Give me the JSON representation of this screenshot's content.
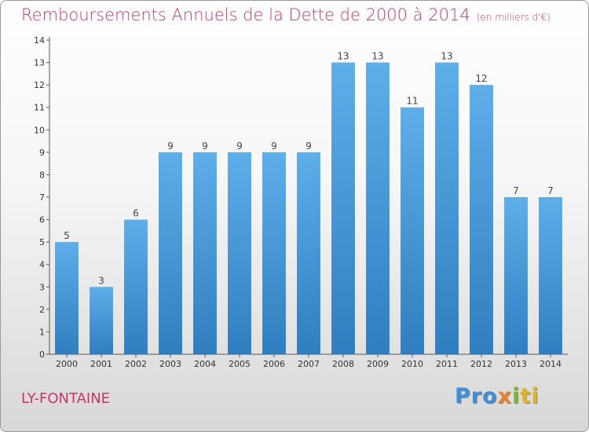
{
  "chart_data": {
    "type": "bar",
    "title": "Remboursements Annuels de la Dette de 2000 à 2014",
    "title_unit": "(en milliers d'€)",
    "categories": [
      "2000",
      "2001",
      "2002",
      "2003",
      "2004",
      "2005",
      "2006",
      "2007",
      "2008",
      "2009",
      "2010",
      "2011",
      "2012",
      "2013",
      "2014"
    ],
    "values": [
      5,
      3,
      6,
      9,
      9,
      9,
      9,
      9,
      13,
      13,
      11,
      13,
      12,
      7,
      7
    ],
    "data_labels": [
      "5",
      "3",
      "6",
      "9",
      "9",
      "9",
      "9",
      "9",
      "13",
      "13",
      "11",
      "13",
      "12",
      "7",
      "7"
    ],
    "ylim": [
      0,
      14
    ],
    "yticks": [
      0,
      1,
      2,
      3,
      4,
      5,
      6,
      7,
      8,
      9,
      10,
      11,
      12,
      13,
      14
    ],
    "ytick_labels": [
      "0",
      "1",
      "2",
      "3",
      "4",
      "5",
      "6",
      "7",
      "8",
      "9",
      "10",
      "11",
      "12",
      "13",
      "14"
    ],
    "grid": false,
    "bar_color": "#4a9fe0"
  },
  "commune": "LY-FONTAINE",
  "logo": {
    "p1": "Pro",
    "p2": "x",
    "p3": "i",
    "p4": "ti"
  }
}
